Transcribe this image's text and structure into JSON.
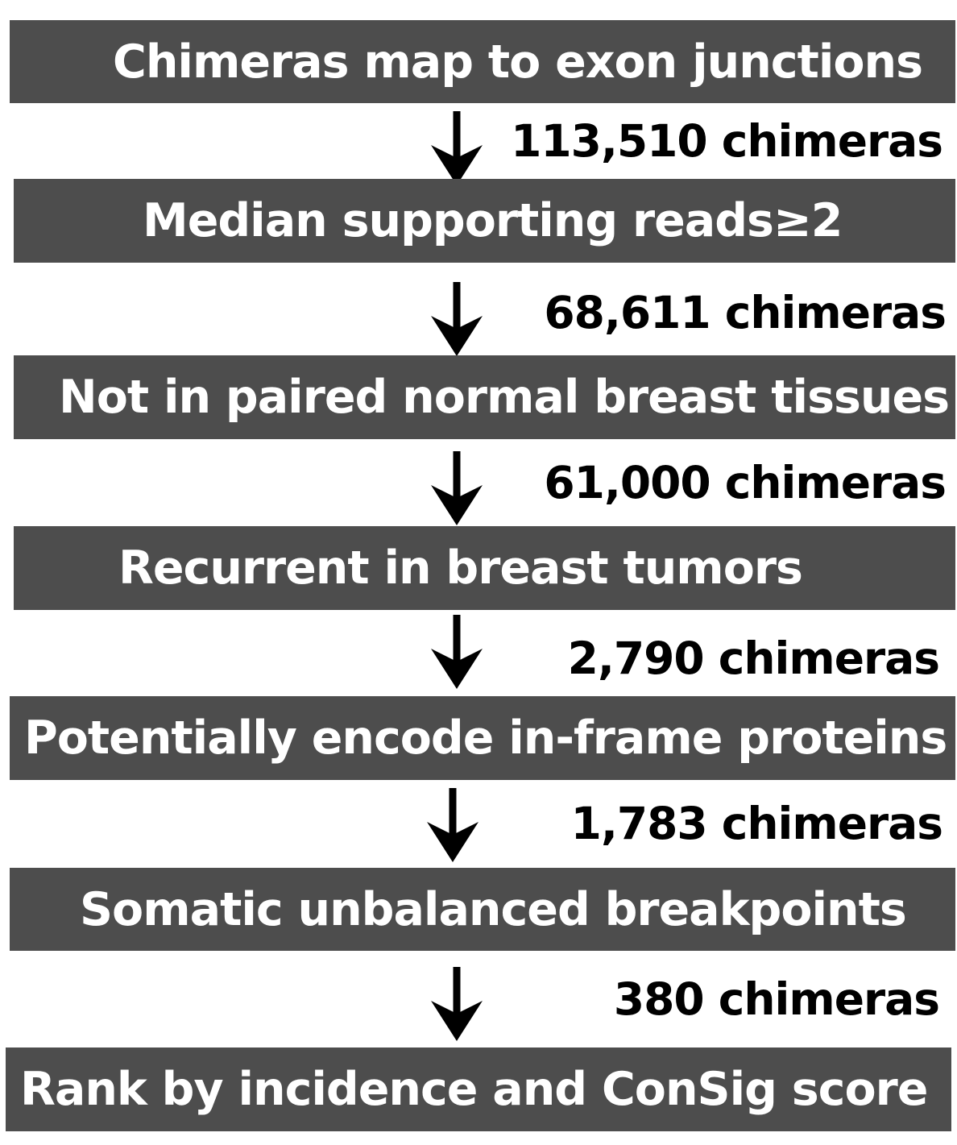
{
  "steps": [
    "Chimeras map to exon junctions",
    "Median supporting reads≥2",
    "Not in paired normal breast tissues",
    "Recurrent in breast tumors",
    "Potentially encode in-frame proteins",
    "Somatic unbalanced breakpoints",
    "Rank by  incidence and ConSig score"
  ],
  "counts": [
    "113,510 chimeras",
    "68,611 chimeras",
    "61,000 chimeras",
    "2,790 chimeras",
    "1,783 chimeras",
    "380 chimeras"
  ],
  "colors": {
    "box_fill": "#4d4d4d",
    "box_text": "#ffffff",
    "count_text": "#000000",
    "arrow": "#000000"
  }
}
